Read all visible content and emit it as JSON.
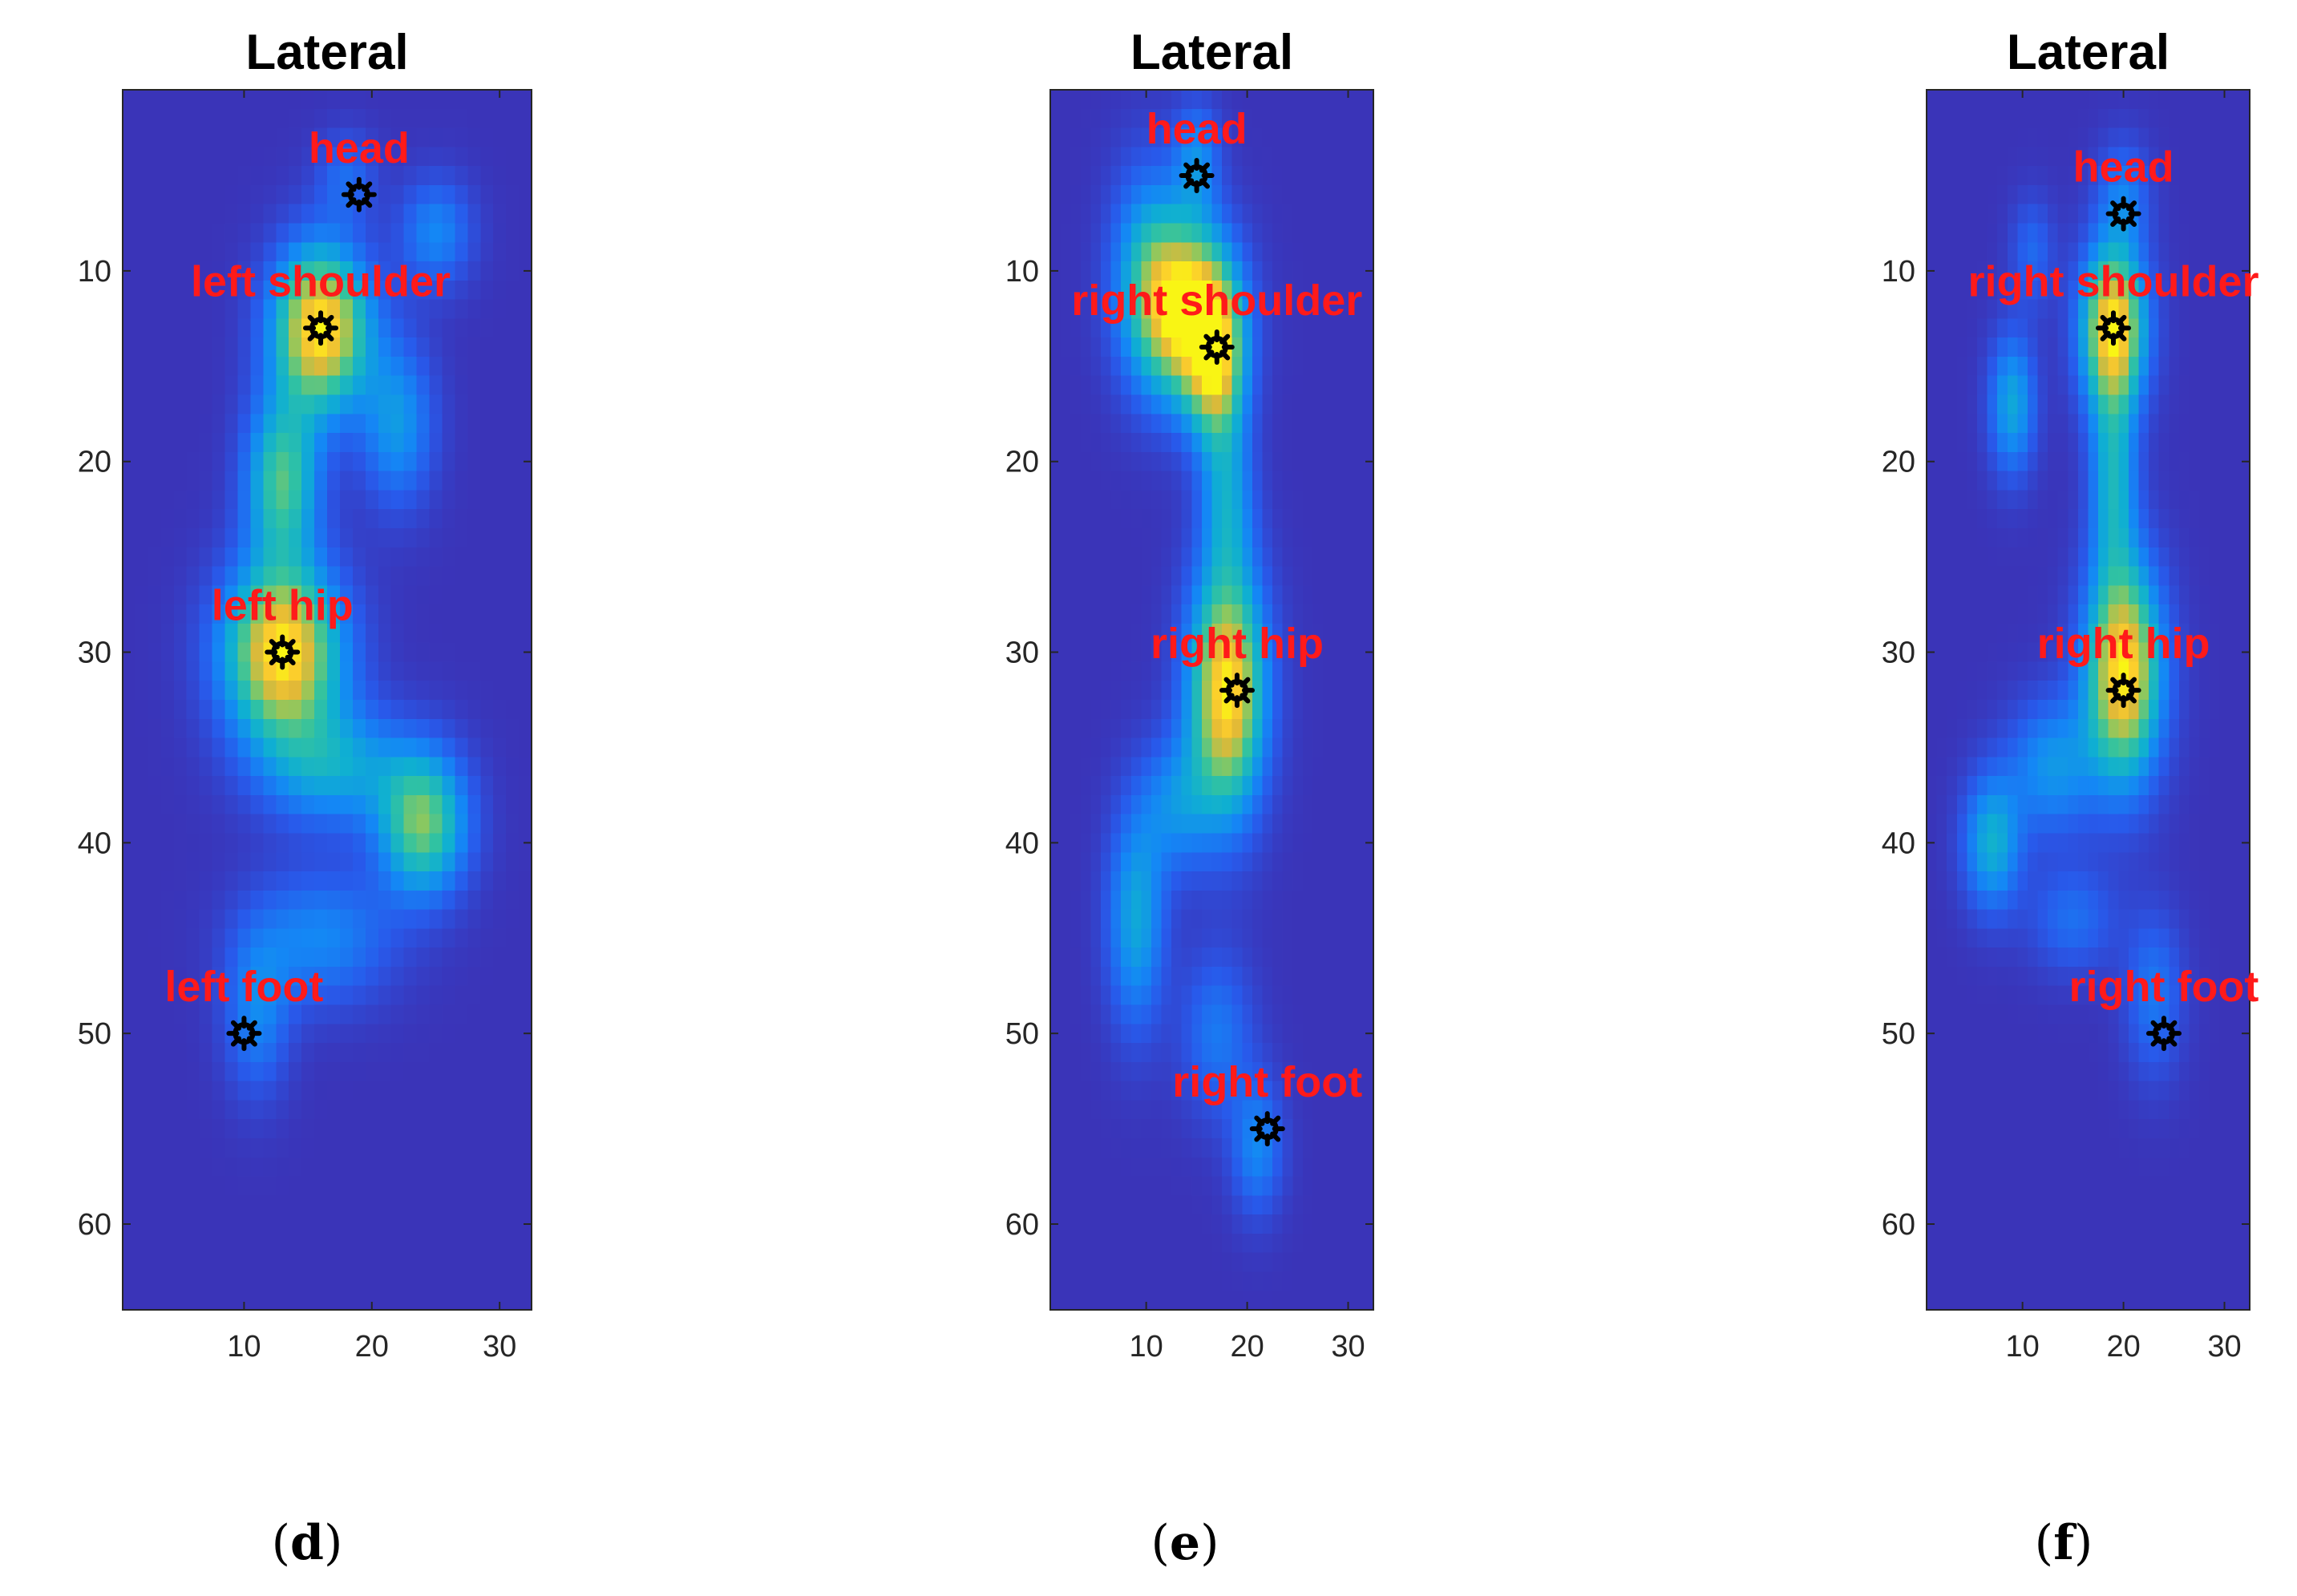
{
  "colors": {
    "background": "#3a34b8",
    "label": "#ff1a1a",
    "marker": "#000000"
  },
  "chart_data": [
    {
      "type": "heatmap",
      "title": "Lateral",
      "caption_letter": "d",
      "xlim": [
        0.5,
        32.5
      ],
      "ylim": [
        0.5,
        64.5
      ],
      "x_ticks": [
        10,
        20,
        30
      ],
      "y_ticks": [
        10,
        20,
        30,
        40,
        50,
        60
      ],
      "y_reversed": true,
      "colormap": "parula",
      "blobs": [
        {
          "x": 16,
          "y": 13,
          "sx": 2.6,
          "sy": 3.0,
          "amp": 1.0
        },
        {
          "x": 13,
          "y": 30,
          "sx": 3.2,
          "sy": 3.2,
          "amp": 1.0
        },
        {
          "x": 13,
          "y": 21,
          "sx": 2.0,
          "sy": 3.0,
          "amp": 0.62
        },
        {
          "x": 24,
          "y": 39,
          "sx": 2.4,
          "sy": 2.6,
          "amp": 0.68
        },
        {
          "x": 22,
          "y": 18,
          "sx": 2.0,
          "sy": 3.0,
          "amp": 0.36
        },
        {
          "x": 25,
          "y": 8,
          "sx": 2.0,
          "sy": 2.0,
          "amp": 0.3
        },
        {
          "x": 17,
          "y": 36,
          "sx": 4.0,
          "sy": 2.2,
          "amp": 0.4
        },
        {
          "x": 16,
          "y": 45,
          "sx": 4.0,
          "sy": 2.5,
          "amp": 0.3
        },
        {
          "x": 11,
          "y": 49,
          "sx": 1.8,
          "sy": 3.0,
          "amp": 0.28
        },
        {
          "x": 18,
          "y": 5,
          "sx": 1.6,
          "sy": 1.6,
          "amp": 0.2
        }
      ],
      "joints": [
        {
          "label": "head",
          "x": 19,
          "y": 6
        },
        {
          "label": "left shoulder",
          "x": 16,
          "y": 13
        },
        {
          "label": "left hip",
          "x": 13,
          "y": 30
        },
        {
          "label": "left foot",
          "x": 10,
          "y": 50
        }
      ]
    },
    {
      "type": "heatmap",
      "title": "Lateral",
      "caption_letter": "e",
      "xlim": [
        0.5,
        32.5
      ],
      "ylim": [
        0.5,
        64.5
      ],
      "x_ticks": [
        10,
        20,
        30
      ],
      "y_ticks": [
        10,
        20,
        30,
        40,
        50,
        60
      ],
      "y_reversed": true,
      "colormap": "parula",
      "blobs": [
        {
          "x": 14,
          "y": 12,
          "sx": 3.2,
          "sy": 3.2,
          "amp": 1.0
        },
        {
          "x": 17,
          "y": 15,
          "sx": 2.0,
          "sy": 3.0,
          "amp": 0.7
        },
        {
          "x": 18,
          "y": 32,
          "sx": 2.6,
          "sy": 4.5,
          "amp": 1.0
        },
        {
          "x": 10,
          "y": 10,
          "sx": 2.5,
          "sy": 4.0,
          "amp": 0.35
        },
        {
          "x": 15,
          "y": 4,
          "sx": 1.6,
          "sy": 2.0,
          "amp": 0.3
        },
        {
          "x": 18,
          "y": 22,
          "sx": 1.8,
          "sy": 3.0,
          "amp": 0.35
        },
        {
          "x": 9,
          "y": 44,
          "sx": 2.0,
          "sy": 4.0,
          "amp": 0.42
        },
        {
          "x": 13,
          "y": 38,
          "sx": 2.5,
          "sy": 2.5,
          "amp": 0.3
        },
        {
          "x": 17,
          "y": 50,
          "sx": 2.5,
          "sy": 3.0,
          "amp": 0.25
        },
        {
          "x": 21,
          "y": 56,
          "sx": 1.8,
          "sy": 2.5,
          "amp": 0.3
        }
      ],
      "joints": [
        {
          "label": "head",
          "x": 15,
          "y": 5
        },
        {
          "label": "right shoulder",
          "x": 17,
          "y": 14
        },
        {
          "label": "right hip",
          "x": 19,
          "y": 32
        },
        {
          "label": "right foot",
          "x": 22,
          "y": 55
        }
      ]
    },
    {
      "type": "heatmap",
      "title": "Lateral",
      "caption_letter": "f",
      "xlim": [
        0.5,
        32.5
      ],
      "ylim": [
        0.5,
        64.5
      ],
      "x_ticks": [
        10,
        20,
        30
      ],
      "y_ticks": [
        10,
        20,
        30,
        40,
        50,
        60
      ],
      "y_reversed": true,
      "colormap": "parula",
      "blobs": [
        {
          "x": 19,
          "y": 13,
          "sx": 2.2,
          "sy": 3.0,
          "amp": 1.0
        },
        {
          "x": 20,
          "y": 31,
          "sx": 2.6,
          "sy": 4.0,
          "amp": 1.0
        },
        {
          "x": 19,
          "y": 21,
          "sx": 1.6,
          "sy": 3.5,
          "amp": 0.45
        },
        {
          "x": 9,
          "y": 17,
          "sx": 1.6,
          "sy": 2.6,
          "amp": 0.42
        },
        {
          "x": 7,
          "y": 40,
          "sx": 2.0,
          "sy": 2.5,
          "amp": 0.45
        },
        {
          "x": 13,
          "y": 36,
          "sx": 3.0,
          "sy": 2.5,
          "amp": 0.35
        },
        {
          "x": 20,
          "y": 6,
          "sx": 1.8,
          "sy": 2.0,
          "amp": 0.25
        },
        {
          "x": 23,
          "y": 48,
          "sx": 2.0,
          "sy": 3.0,
          "amp": 0.25
        },
        {
          "x": 15,
          "y": 44,
          "sx": 3.0,
          "sy": 2.0,
          "amp": 0.22
        },
        {
          "x": 11,
          "y": 9,
          "sx": 1.5,
          "sy": 2.0,
          "amp": 0.2
        }
      ],
      "joints": [
        {
          "label": "head",
          "x": 20,
          "y": 7
        },
        {
          "label": "right shoulder",
          "x": 19,
          "y": 13
        },
        {
          "label": "right hip",
          "x": 20,
          "y": 32
        },
        {
          "label": "right foot",
          "x": 24,
          "y": 50
        }
      ]
    }
  ]
}
